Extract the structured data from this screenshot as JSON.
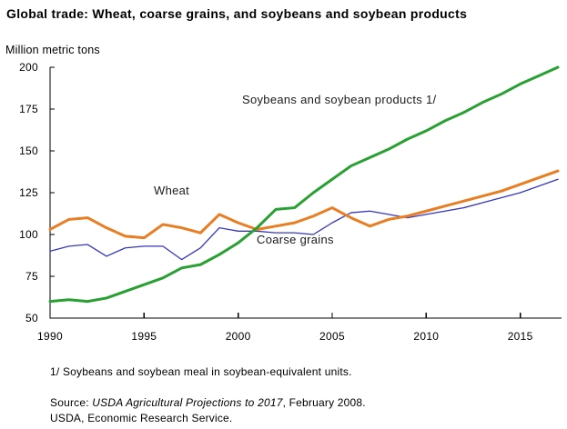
{
  "title": "Global trade: Wheat, coarse grains, and soybeans and soybean products",
  "y_axis_unit": "Million metric tons",
  "labels": {
    "wheat": "Wheat",
    "coarse_grains": "Coarse grains",
    "soybeans": "Soybeans and soybean products 1/"
  },
  "footnotes": {
    "note1": "1/ Soybeans and soybean meal in soybean-equivalent units.",
    "source_prefix": "Source: ",
    "source_italic": "USDA Agricultural Projections to 2017",
    "source_suffix": ", February 2008.",
    "source_line2": "USDA, Economic Research Service."
  },
  "chart_data": {
    "type": "line",
    "title": "Global trade: Wheat, coarse grains, and soybeans and soybean products",
    "xlabel": "",
    "ylabel": "Million metric tons",
    "xlim": [
      1990,
      2017
    ],
    "ylim": [
      50,
      200
    ],
    "x_ticks": [
      1990,
      1995,
      2000,
      2005,
      2010,
      2015
    ],
    "y_ticks": [
      50,
      75,
      100,
      125,
      150,
      175,
      200
    ],
    "grid": false,
    "legend": "inline-labels",
    "x": [
      1990,
      1991,
      1992,
      1993,
      1994,
      1995,
      1996,
      1997,
      1998,
      1999,
      2000,
      2001,
      2002,
      2003,
      2004,
      2005,
      2006,
      2007,
      2008,
      2009,
      2010,
      2011,
      2012,
      2013,
      2014,
      2015,
      2016,
      2017
    ],
    "series": [
      {
        "name": "Coarse grains",
        "color": "#3636BE",
        "width": 1.3,
        "values": [
          90,
          93,
          94,
          87,
          92,
          93,
          93,
          85,
          92,
          104,
          102,
          102,
          101,
          101,
          100,
          107,
          113,
          114,
          112,
          110,
          112,
          114,
          116,
          119,
          122,
          125,
          129,
          133
        ]
      },
      {
        "name": "Wheat",
        "color": "#E87E23",
        "width": 3,
        "values": [
          103,
          109,
          110,
          104,
          99,
          98,
          106,
          104,
          101,
          112,
          107,
          103,
          105,
          107,
          111,
          116,
          110,
          105,
          109,
          111,
          114,
          117,
          120,
          123,
          126,
          130,
          134,
          138
        ]
      },
      {
        "name": "Soybeans and soybean products 1/",
        "color": "#28A032",
        "width": 3,
        "values": [
          60,
          61,
          60,
          62,
          66,
          70,
          74,
          80,
          82,
          88,
          95,
          104,
          115,
          116,
          125,
          133,
          141,
          146,
          151,
          157,
          162,
          168,
          173,
          179,
          184,
          190,
          195,
          200
        ]
      }
    ]
  }
}
